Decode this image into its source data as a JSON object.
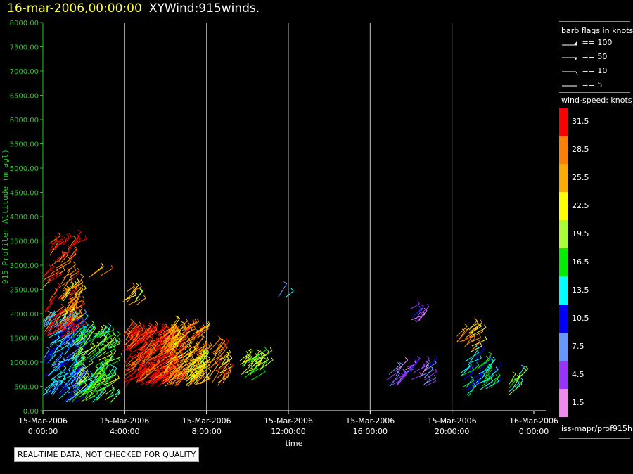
{
  "header": {
    "date": "16-mar-2006,00:00:00",
    "name": "XYWind:915winds."
  },
  "barb_legend": {
    "title": "barb flags in knots",
    "rows": [
      {
        "label": "== 100"
      },
      {
        "label": "== 50"
      },
      {
        "label": "== 10"
      },
      {
        "label": "== 5"
      }
    ]
  },
  "colorbar": {
    "title": "wind-speed: knots",
    "bins": [
      {
        "label": "31.5",
        "color": "#ff0000"
      },
      {
        "label": "28.5",
        "color": "#ff8000"
      },
      {
        "label": "25.5",
        "color": "#ffaa00"
      },
      {
        "label": "22.5",
        "color": "#ffff00"
      },
      {
        "label": "19.5",
        "color": "#aaff33"
      },
      {
        "label": "16.5",
        "color": "#00ee00"
      },
      {
        "label": "13.5",
        "color": "#00ffff"
      },
      {
        "label": "10.5",
        "color": "#0000ff"
      },
      {
        "label": "7.5",
        "color": "#6699ff"
      },
      {
        "label": "4.5",
        "color": "#9933ff"
      },
      {
        "label": "1.5",
        "color": "#ee88ee"
      }
    ]
  },
  "source_label": "iss-mapr/prof915h",
  "quality_note": "REAL-TIME DATA, NOT CHECKED FOR QUALITY",
  "chart_data": {
    "type": "scatter",
    "xlabel": "time",
    "ylabel": "915 Profiler Altitude (m agl)",
    "ylim": [
      0,
      8000
    ],
    "xlim_hours": [
      0,
      24
    ],
    "y_ticks": [
      "0.00",
      "500.00",
      "1000.00",
      "1500.00",
      "2000.00",
      "2500.00",
      "3000.00",
      "3500.00",
      "4000.00",
      "4500.00",
      "5000.00",
      "5500.00",
      "6000.00",
      "6500.00",
      "7000.00",
      "7500.00",
      "8000.00"
    ],
    "x_ticks": [
      {
        "hour": 0,
        "date": "15-Mar-2006",
        "time": "0:00:00"
      },
      {
        "hour": 4,
        "date": "15-Mar-2006",
        "time": "4:00:00"
      },
      {
        "hour": 8,
        "date": "15-Mar-2006",
        "time": "8:00:00"
      },
      {
        "hour": 12,
        "date": "15-Mar-2006",
        "time": "12:00:00"
      },
      {
        "hour": 16,
        "date": "15-Mar-2006",
        "time": "16:00:00"
      },
      {
        "hour": 20,
        "date": "15-Mar-2006",
        "time": "20:00:00"
      },
      {
        "hour": 24,
        "date": "16-Mar-2006",
        "time": "0:00:00"
      }
    ],
    "grid": "vertical",
    "wind_clusters": [
      {
        "t0": 0.0,
        "t1": 1.8,
        "z0": 150,
        "z1": 1900,
        "speed": 11,
        "n": 170
      },
      {
        "t0": 0.0,
        "t1": 1.5,
        "z0": 1500,
        "z1": 3500,
        "speed": 30,
        "n": 90
      },
      {
        "t0": 0.6,
        "t1": 1.6,
        "z0": 1800,
        "z1": 2600,
        "speed": 24,
        "n": 30
      },
      {
        "t0": 1.4,
        "t1": 3.3,
        "z0": 150,
        "z1": 1600,
        "speed": 18,
        "n": 130
      },
      {
        "t0": 2.1,
        "t1": 2.8,
        "z0": 2700,
        "z1": 2800,
        "speed": 27,
        "n": 4
      },
      {
        "t0": 3.9,
        "t1": 4.6,
        "z0": 2150,
        "z1": 2550,
        "speed": 24,
        "n": 10
      },
      {
        "t0": 3.9,
        "t1": 6.2,
        "z0": 500,
        "z1": 1600,
        "speed": 31,
        "n": 240
      },
      {
        "t0": 5.8,
        "t1": 7.6,
        "z0": 500,
        "z1": 1700,
        "speed": 27,
        "n": 150
      },
      {
        "t0": 7.0,
        "t1": 7.8,
        "z0": 500,
        "z1": 1200,
        "speed": 22,
        "n": 40
      },
      {
        "t0": 8.0,
        "t1": 8.9,
        "z0": 500,
        "z1": 1300,
        "speed": 27,
        "n": 30
      },
      {
        "t0": 9.6,
        "t1": 10.6,
        "z0": 600,
        "z1": 1100,
        "speed": 20,
        "n": 30
      },
      {
        "t0": 11.3,
        "t1": 12.0,
        "z0": 2200,
        "z1": 2400,
        "speed": 10,
        "n": 2
      },
      {
        "t0": 16.6,
        "t1": 18.8,
        "z0": 500,
        "z1": 900,
        "speed": 6,
        "n": 30
      },
      {
        "t0": 17.9,
        "t1": 18.5,
        "z0": 1750,
        "z1": 2100,
        "speed": 6,
        "n": 8
      },
      {
        "t0": 20.2,
        "t1": 21.0,
        "z0": 1100,
        "z1": 1700,
        "speed": 26,
        "n": 20
      },
      {
        "t0": 20.4,
        "t1": 22.0,
        "z0": 300,
        "z1": 1100,
        "speed": 14,
        "n": 40
      },
      {
        "t0": 22.7,
        "t1": 23.3,
        "z0": 300,
        "z1": 700,
        "speed": 16,
        "n": 10
      }
    ]
  }
}
